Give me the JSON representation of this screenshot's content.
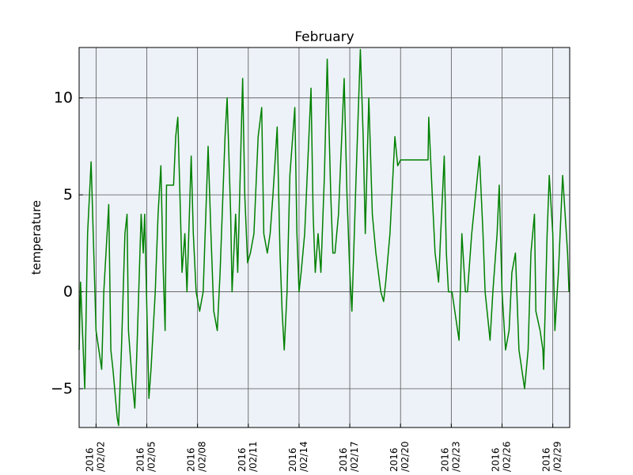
{
  "chart_data": {
    "type": "line",
    "title": "February",
    "ylabel": "temperature",
    "x": [
      "2016-02-01T00:00",
      "2016-02-01T02:00",
      "2016-02-01T08:00",
      "2016-02-01T12:00",
      "2016-02-01T17:00",
      "2016-02-01T20:00",
      "2016-02-02T00:00",
      "2016-02-02T04:00",
      "2016-02-02T08:00",
      "2016-02-02T11:00",
      "2016-02-02T18:00",
      "2016-02-02T21:00",
      "2016-02-03T00:00",
      "2016-02-03T06:00",
      "2016-02-03T08:00",
      "2016-02-03T12:00",
      "2016-02-03T17:00",
      "2016-02-03T20:00",
      "2016-02-03T22:00",
      "2016-02-04T03:00",
      "2016-02-04T07:00",
      "2016-02-04T10:00",
      "2016-02-04T16:00",
      "2016-02-04T19:00",
      "2016-02-04T21:00",
      "2016-02-05T03:00",
      "2016-02-05T06:00",
      "2016-02-05T12:00",
      "2016-02-05T16:00",
      "2016-02-05T20:00",
      "2016-02-05T23:00",
      "2016-02-06T02:00",
      "2016-02-06T04:00",
      "2016-02-06T14:00",
      "2016-02-06T17:00",
      "2016-02-06T20:00",
      "2016-02-06T23:00",
      "2016-02-07T02:00",
      "2016-02-07T06:00",
      "2016-02-07T09:00",
      "2016-02-07T15:00",
      "2016-02-07T18:00",
      "2016-02-07T22:00",
      "2016-02-08T03:00",
      "2016-02-08T08:00",
      "2016-02-08T15:00",
      "2016-02-08T19:00",
      "2016-02-08T23:00",
      "2016-02-09T04:00",
      "2016-02-09T08:00",
      "2016-02-09T15:00",
      "2016-02-09T18:00",
      "2016-02-09T23:00",
      "2016-02-10T01:00",
      "2016-02-10T06:00",
      "2016-02-10T09:00",
      "2016-02-10T16:00",
      "2016-02-10T19:00",
      "2016-02-10T23:00",
      "2016-02-11T03:00",
      "2016-02-11T08:00",
      "2016-02-11T14:00",
      "2016-02-11T19:00",
      "2016-02-11T22:00",
      "2016-02-12T03:00",
      "2016-02-12T07:00",
      "2016-02-12T11:00",
      "2016-02-12T17:00",
      "2016-02-12T21:00",
      "2016-02-13T00:00",
      "2016-02-13T03:00",
      "2016-02-13T07:00",
      "2016-02-13T11:00",
      "2016-02-13T18:00",
      "2016-02-13T21:00",
      "2016-02-14T00:00",
      "2016-02-14T03:00",
      "2016-02-14T08:00",
      "2016-02-14T17:00",
      "2016-02-14T20:00",
      "2016-02-14T23:00",
      "2016-02-15T03:00",
      "2016-02-15T07:00",
      "2016-02-15T12:00",
      "2016-02-15T16:00",
      "2016-02-15T21:00",
      "2016-02-16T00:00",
      "2016-02-16T03:00",
      "2016-02-16T08:00",
      "2016-02-16T16:00",
      "2016-02-16T20:00",
      "2016-02-17T00:00",
      "2016-02-17T03:00",
      "2016-02-17T09:00",
      "2016-02-17T15:00",
      "2016-02-17T19:00",
      "2016-02-17T22:00",
      "2016-02-18T03:00",
      "2016-02-18T08:00",
      "2016-02-18T13:00",
      "2016-02-18T20:00",
      "2016-02-19T00:00",
      "2016-02-19T03:00",
      "2016-02-19T09:00",
      "2016-02-19T16:00",
      "2016-02-19T20:00",
      "2016-02-20T00:00",
      "2016-02-21T15:00",
      "2016-02-21T16:00",
      "2016-02-21T21:00",
      "2016-02-22T01:00",
      "2016-02-22T06:00",
      "2016-02-22T09:00",
      "2016-02-22T14:00",
      "2016-02-22T17:00",
      "2016-02-22T20:00",
      "2016-02-23T01:00",
      "2016-02-23T05:00",
      "2016-02-23T11:00",
      "2016-02-23T15:00",
      "2016-02-23T20:00",
      "2016-02-23T23:00",
      "2016-02-24T05:00",
      "2016-02-24T16:00",
      "2016-02-24T21:00",
      "2016-02-25T00:00",
      "2016-02-25T07:00",
      "2016-02-25T11:00",
      "2016-02-25T17:00",
      "2016-02-25T20:00",
      "2016-02-26T00:00",
      "2016-02-26T05:00",
      "2016-02-26T10:00",
      "2016-02-26T14:00",
      "2016-02-26T19:00",
      "2016-02-27T00:00",
      "2016-02-27T08:00",
      "2016-02-27T13:00",
      "2016-02-27T17:00",
      "2016-02-27T22:00",
      "2016-02-28T00:00",
      "2016-02-28T06:00",
      "2016-02-28T10:00",
      "2016-02-28T11:00",
      "2016-02-28T16:00",
      "2016-02-28T19:00",
      "2016-02-29T00:00",
      "2016-02-29T03:00",
      "2016-02-29T08:00",
      "2016-02-29T14:00",
      "2016-02-29T21:00",
      "2016-02-29T23:00"
    ],
    "series": [
      {
        "color": "#008000",
        "values": [
          -3,
          0.5,
          -5,
          3,
          6.7,
          3,
          -2,
          -3,
          -4,
          0,
          4.5,
          -3,
          -4,
          -6.5,
          -6.9,
          -3,
          3,
          4,
          -2,
          -4.5,
          -6,
          -3,
          4,
          2,
          4,
          -5.5,
          -4,
          0,
          4,
          6.5,
          1.5,
          -2,
          5.5,
          5.5,
          8,
          9,
          5,
          1,
          3,
          0,
          7,
          3,
          0,
          -1,
          0,
          7.5,
          3,
          -1,
          -2,
          1,
          8,
          10,
          4,
          0,
          4,
          1,
          11,
          5,
          1.5,
          2,
          3,
          8,
          9.5,
          3,
          2,
          3,
          5,
          8.5,
          2,
          -1,
          -3,
          0,
          6,
          9.5,
          3,
          0,
          1,
          3,
          10.5,
          4,
          1,
          3,
          1,
          6,
          12,
          5,
          2,
          2,
          4,
          11,
          5,
          1,
          -1,
          6,
          12.5,
          8,
          3,
          10,
          4,
          2,
          0,
          -0.5,
          0.5,
          3,
          8,
          6.5,
          6.8,
          6.8,
          9,
          5,
          2,
          0.5,
          3,
          7,
          2,
          0,
          0,
          -1,
          -2.5,
          3,
          0,
          0,
          3,
          7,
          3,
          0,
          -2.5,
          0,
          3,
          5.5,
          0,
          -3,
          -2,
          1,
          2,
          -3,
          -5,
          -3,
          2,
          4,
          -1,
          -2,
          -3,
          -4,
          3,
          6,
          3,
          -2,
          1,
          6,
          2,
          0
        ]
      }
    ],
    "xlim": [
      "2016-02-01T00:00",
      "2016-03-01T00:00"
    ],
    "xticks": [
      {
        "value": "2016-02-02T00:00",
        "label": "2016/02/02"
      },
      {
        "value": "2016-02-05T00:00",
        "label": "2016/02/05"
      },
      {
        "value": "2016-02-08T00:00",
        "label": "2016/02/08"
      },
      {
        "value": "2016-02-11T00:00",
        "label": "2016/02/11"
      },
      {
        "value": "2016-02-14T00:00",
        "label": "2016/02/14"
      },
      {
        "value": "2016-02-17T00:00",
        "label": "2016/02/17"
      },
      {
        "value": "2016-02-20T00:00",
        "label": "2016/02/20"
      },
      {
        "value": "2016-02-23T00:00",
        "label": "2016/02/23"
      },
      {
        "value": "2016-02-26T00:00",
        "label": "2016/02/26"
      },
      {
        "value": "2016-02-29T00:00",
        "label": "2016/02/29"
      }
    ],
    "ylim": [
      -7,
      12.6
    ],
    "yticks": [
      {
        "value": -5,
        "label": "−5"
      },
      0,
      5,
      10
    ],
    "grid": true
  }
}
